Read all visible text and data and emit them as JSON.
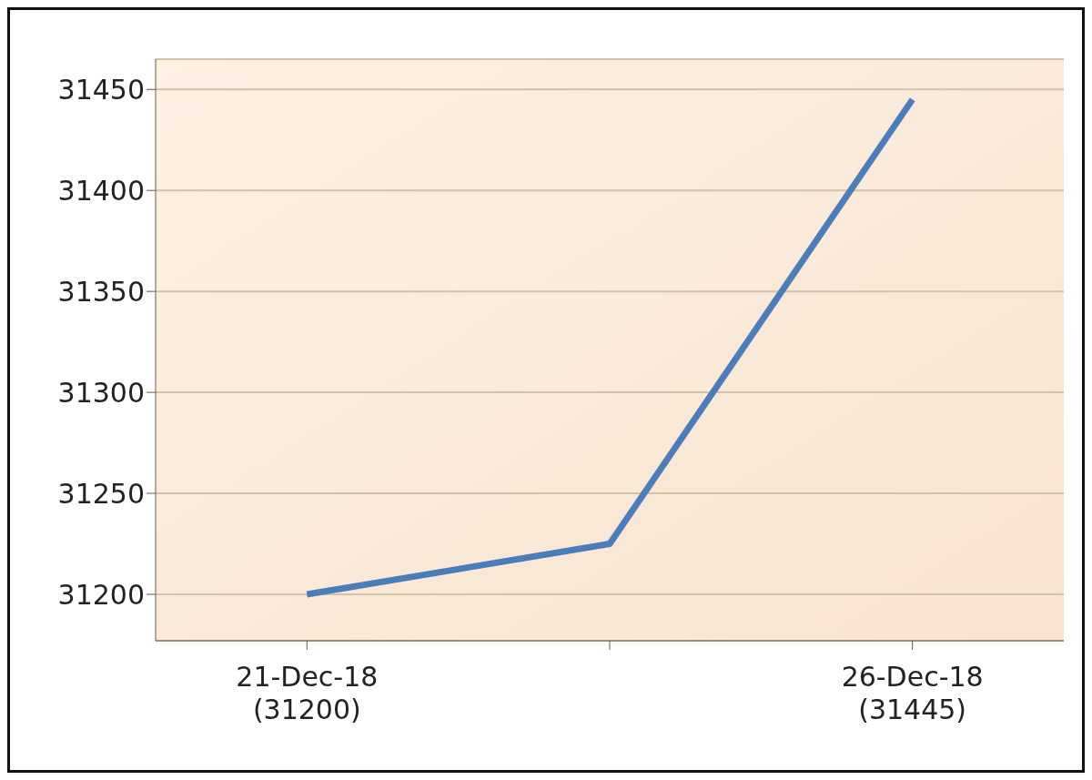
{
  "chart_data": {
    "type": "line",
    "categories": [
      "21-Dec-18\n(31200)",
      null,
      "26-Dec-18\n(31445)"
    ],
    "series": [
      {
        "color": "#4a7ebb",
        "values": [
          31200,
          31225,
          31445
        ]
      }
    ],
    "ylim": [
      31177,
      31465
    ],
    "yticks": [
      31200,
      31250,
      31300,
      31350,
      31400,
      31450
    ],
    "grid": "y",
    "marker": "none",
    "line_style": "solid"
  }
}
